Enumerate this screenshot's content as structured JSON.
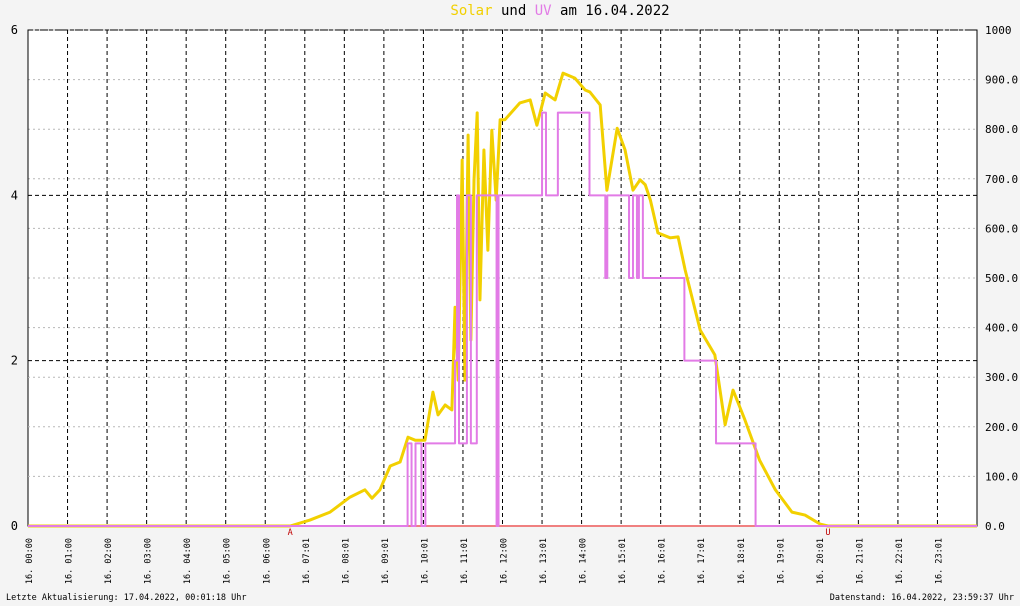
{
  "chart_data": {
    "type": "line",
    "title_parts": [
      "und",
      "am 16.04.2022"
    ],
    "xlim": [
      0,
      24
    ],
    "xticks": [
      {
        "value": 0,
        "label": "16. 00:00"
      },
      {
        "value": 1,
        "label": "16. 01:00"
      },
      {
        "value": 2,
        "label": "16. 02:00"
      },
      {
        "value": 3,
        "label": "16. 03:00"
      },
      {
        "value": 4,
        "label": "16. 04:00"
      },
      {
        "value": 5,
        "label": "16. 05:00"
      },
      {
        "value": 6,
        "label": "16. 06:00"
      },
      {
        "value": 7,
        "label": "16. 07:01"
      },
      {
        "value": 8,
        "label": "16. 08:01"
      },
      {
        "value": 9,
        "label": "16. 09:01"
      },
      {
        "value": 10,
        "label": "16. 10:01"
      },
      {
        "value": 11,
        "label": "16. 11:01"
      },
      {
        "value": 12,
        "label": "16. 12:00"
      },
      {
        "value": 13,
        "label": "16. 13:01"
      },
      {
        "value": 14,
        "label": "16. 14:00"
      },
      {
        "value": 15,
        "label": "16. 15:01"
      },
      {
        "value": 16,
        "label": "16. 16:01"
      },
      {
        "value": 17,
        "label": "16. 17:01"
      },
      {
        "value": 18,
        "label": "16. 18:01"
      },
      {
        "value": 19,
        "label": "16. 19:01"
      },
      {
        "value": 20,
        "label": "16. 20:01"
      },
      {
        "value": 21,
        "label": "16. 21:01"
      },
      {
        "value": 22,
        "label": "16. 22:01"
      },
      {
        "value": 23,
        "label": "16. 23:01"
      }
    ],
    "ylim": [
      0,
      6
    ],
    "yticks": [
      0,
      2,
      4,
      6
    ],
    "y2lim": [
      0,
      1000
    ],
    "y2ticks": [
      {
        "value": 0,
        "label": "0.0"
      },
      {
        "value": 100,
        "label": "100.0"
      },
      {
        "value": 200,
        "label": "200.0"
      },
      {
        "value": 300,
        "label": "300.0"
      },
      {
        "value": 400,
        "label": "400.0"
      },
      {
        "value": 500,
        "label": "500.0"
      },
      {
        "value": 600,
        "label": "600.0"
      },
      {
        "value": 700,
        "label": "700.0"
      },
      {
        "value": 800,
        "label": "800.0"
      },
      {
        "value": 900,
        "label": "900.0"
      },
      1000
    ],
    "grid": true,
    "series": [
      {
        "name": "Solar",
        "color": "#f2d000",
        "axis": "y2",
        "x": [
          0,
          6.63,
          7.13,
          7.64,
          8.14,
          8.52,
          8.7,
          8.9,
          9.16,
          9.41,
          9.61,
          9.79,
          10.04,
          10.24,
          10.37,
          10.55,
          10.72,
          10.8,
          10.88,
          10.98,
          11.05,
          11.13,
          11.2,
          11.28,
          11.36,
          11.43,
          11.53,
          11.63,
          11.73,
          11.84,
          11.94,
          12.06,
          12.44,
          12.7,
          12.87,
          13.08,
          13.33,
          13.53,
          13.83,
          14.09,
          14.21,
          14.47,
          14.64,
          14.9,
          15.1,
          15.3,
          15.48,
          15.61,
          15.74,
          15.93,
          16.24,
          16.44,
          16.62,
          17.0,
          17.37,
          17.63,
          17.83,
          18.13,
          18.5,
          18.9,
          19.32,
          19.65,
          20.03,
          20.23,
          24
        ],
        "values": [
          0,
          0,
          12,
          28,
          58,
          73,
          56,
          73,
          121,
          129,
          179,
          173,
          173,
          270,
          224,
          244,
          234,
          441,
          294,
          738,
          294,
          788,
          375,
          698,
          833,
          456,
          758,
          556,
          798,
          657,
          819,
          819,
          853,
          859,
          808,
          873,
          859,
          913,
          903,
          879,
          875,
          849,
          677,
          802,
          758,
          677,
          698,
          688,
          657,
          591,
          581,
          583,
          516,
          395,
          345,
          204,
          274,
          214,
          133,
          73,
          28,
          22,
          4,
          0,
          0
        ]
      },
      {
        "name": "UV",
        "color": "#e27be6",
        "axis": "y",
        "x": [
          0,
          9.6,
          9.6,
          9.7,
          9.7,
          9.8,
          9.8,
          9.95,
          9.95,
          10.05,
          10.05,
          10.8,
          10.8,
          10.85,
          10.85,
          10.9,
          10.9,
          11.1,
          11.1,
          11.2,
          11.2,
          11.35,
          11.35,
          11.85,
          11.85,
          11.9,
          11.9,
          13.0,
          13.0,
          13.1,
          13.1,
          13.4,
          13.4,
          14.2,
          14.2,
          14.6,
          14.6,
          14.65,
          14.65,
          15.2,
          15.2,
          15.3,
          15.3,
          15.4,
          15.4,
          15.45,
          15.45,
          15.55,
          15.55,
          16.6,
          16.6,
          17.4,
          17.4,
          18.4,
          18.4,
          24
        ],
        "values": [
          0,
          0,
          1,
          1,
          0,
          0,
          1,
          1,
          0,
          0,
          1,
          1,
          2,
          2,
          4,
          4,
          1,
          1,
          4,
          4,
          1,
          1,
          4,
          4,
          0,
          0,
          4,
          4,
          5,
          5,
          4,
          4,
          5,
          5,
          4,
          4,
          3,
          3,
          4,
          4,
          3,
          3,
          4,
          4,
          3,
          3,
          4,
          4,
          3,
          3,
          2,
          2,
          1,
          1,
          0,
          0
        ]
      }
    ],
    "annotations": [
      {
        "x": 6.63,
        "label": "A"
      },
      {
        "x": 20.23,
        "label": "U"
      }
    ],
    "footer_left": "Letzte Aktualisierung: 17.04.2022, 00:01:18 Uhr",
    "footer_right": "Datenstand: 16.04.2022, 23:59:37 Uhr"
  }
}
